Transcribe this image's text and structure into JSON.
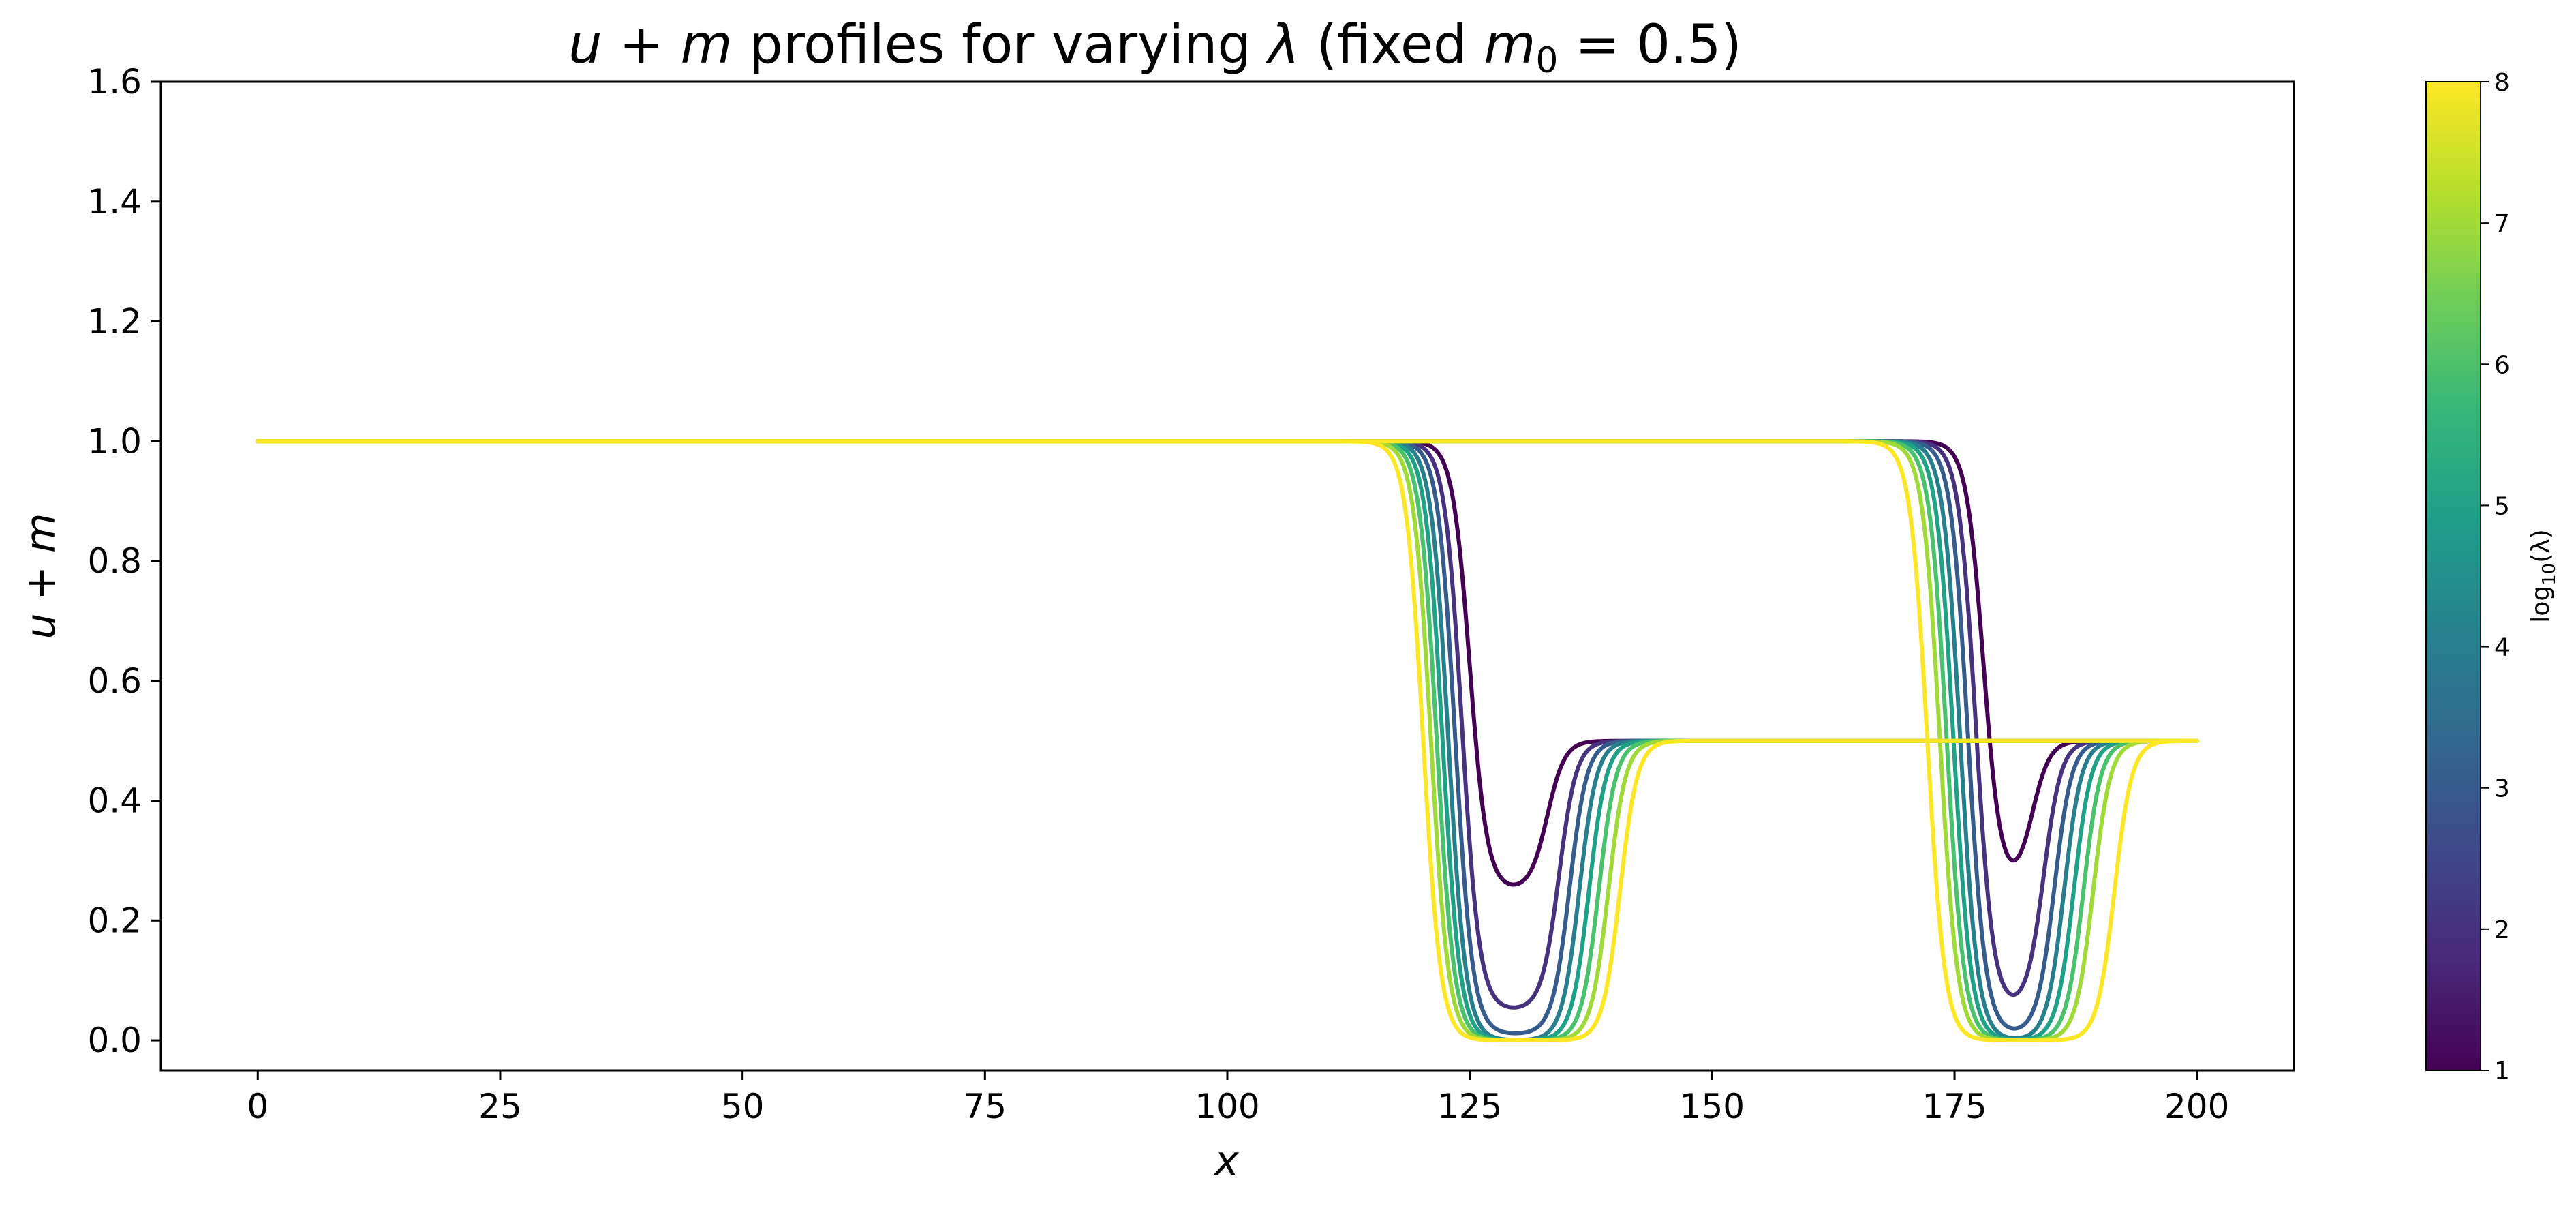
{
  "chart_data": {
    "type": "line",
    "title": "u + m profiles for varying λ (fixed m₀ = 0.5)",
    "title_parts": {
      "u": "u",
      "plus": " + ",
      "m": "m",
      "profiles_text": " profiles for varying ",
      "lambda": "λ",
      "fixed_open": " (fixed ",
      "m0_base": "m",
      "m0_sub": "0",
      "m0_eq": " = 0.5)"
    },
    "xlabel": "x",
    "ylabel": "u + m",
    "xlim": [
      -10,
      210
    ],
    "ylim": [
      -0.05,
      1.6
    ],
    "xticks": [
      0,
      25,
      50,
      75,
      100,
      125,
      150,
      175,
      200
    ],
    "yticks": [
      0.0,
      0.2,
      0.4,
      0.6,
      0.8,
      1.0,
      1.2,
      1.4,
      1.6
    ],
    "xtick_labels": [
      "0",
      "25",
      "50",
      "75",
      "100",
      "125",
      "150",
      "175",
      "200"
    ],
    "ytick_labels": [
      "0.0",
      "0.2",
      "0.4",
      "0.6",
      "0.8",
      "1.0",
      "1.2",
      "1.4",
      "1.6"
    ],
    "grid": false,
    "x_range": [
      0,
      200
    ],
    "colorbar": {
      "label": "log₁₀(λ)",
      "label_parts": {
        "base": "log",
        "sub": "10",
        "args": "(λ)"
      },
      "range": [
        1,
        8
      ],
      "ticks": [
        1,
        2,
        3,
        4,
        5,
        6,
        7,
        8
      ],
      "tick_labels": [
        "1",
        "2",
        "3",
        "4",
        "5",
        "6",
        "7",
        "8"
      ],
      "colormap": "viridis"
    },
    "series": [
      {
        "log10_lambda": 1,
        "color": "#440154",
        "front1_x": 125.0,
        "back1_x": 133.0,
        "front2_x": 178.0,
        "back2_x": 183.0,
        "dip_min": 0.25
      },
      {
        "log10_lambda": 1.875,
        "color": "#46327e",
        "front1_x": 124.2,
        "back1_x": 134.2,
        "front2_x": 177.2,
        "back2_x": 184.2,
        "dip_min": 0.05
      },
      {
        "log10_lambda": 2.75,
        "color": "#365c8d",
        "front1_x": 123.5,
        "back1_x": 135.3,
        "front2_x": 176.4,
        "back2_x": 185.3,
        "dip_min": 0.01
      },
      {
        "log10_lambda": 3.625,
        "color": "#277f8e",
        "front1_x": 122.8,
        "back1_x": 136.3,
        "front2_x": 175.6,
        "back2_x": 186.3,
        "dip_min": 0.0
      },
      {
        "log10_lambda": 4.5,
        "color": "#1fa187",
        "front1_x": 122.2,
        "back1_x": 137.3,
        "front2_x": 174.9,
        "back2_x": 187.3,
        "dip_min": 0.0
      },
      {
        "log10_lambda": 5.375,
        "color": "#4ac16d",
        "front1_x": 121.6,
        "back1_x": 138.3,
        "front2_x": 174.2,
        "back2_x": 188.3,
        "dip_min": 0.0
      },
      {
        "log10_lambda": 6.25,
        "color": "#a0da39",
        "front1_x": 121.0,
        "back1_x": 139.3,
        "front2_x": 173.5,
        "back2_x": 189.3,
        "dip_min": 0.0
      },
      {
        "log10_lambda": 8,
        "color": "#fde725",
        "front1_x": 120.2,
        "back1_x": 140.5,
        "front2_x": 172.2,
        "back2_x": 191.5,
        "dip_min": 0.0
      }
    ],
    "profile_levels": {
      "upper": 1.0,
      "plateau": 0.5
    }
  }
}
